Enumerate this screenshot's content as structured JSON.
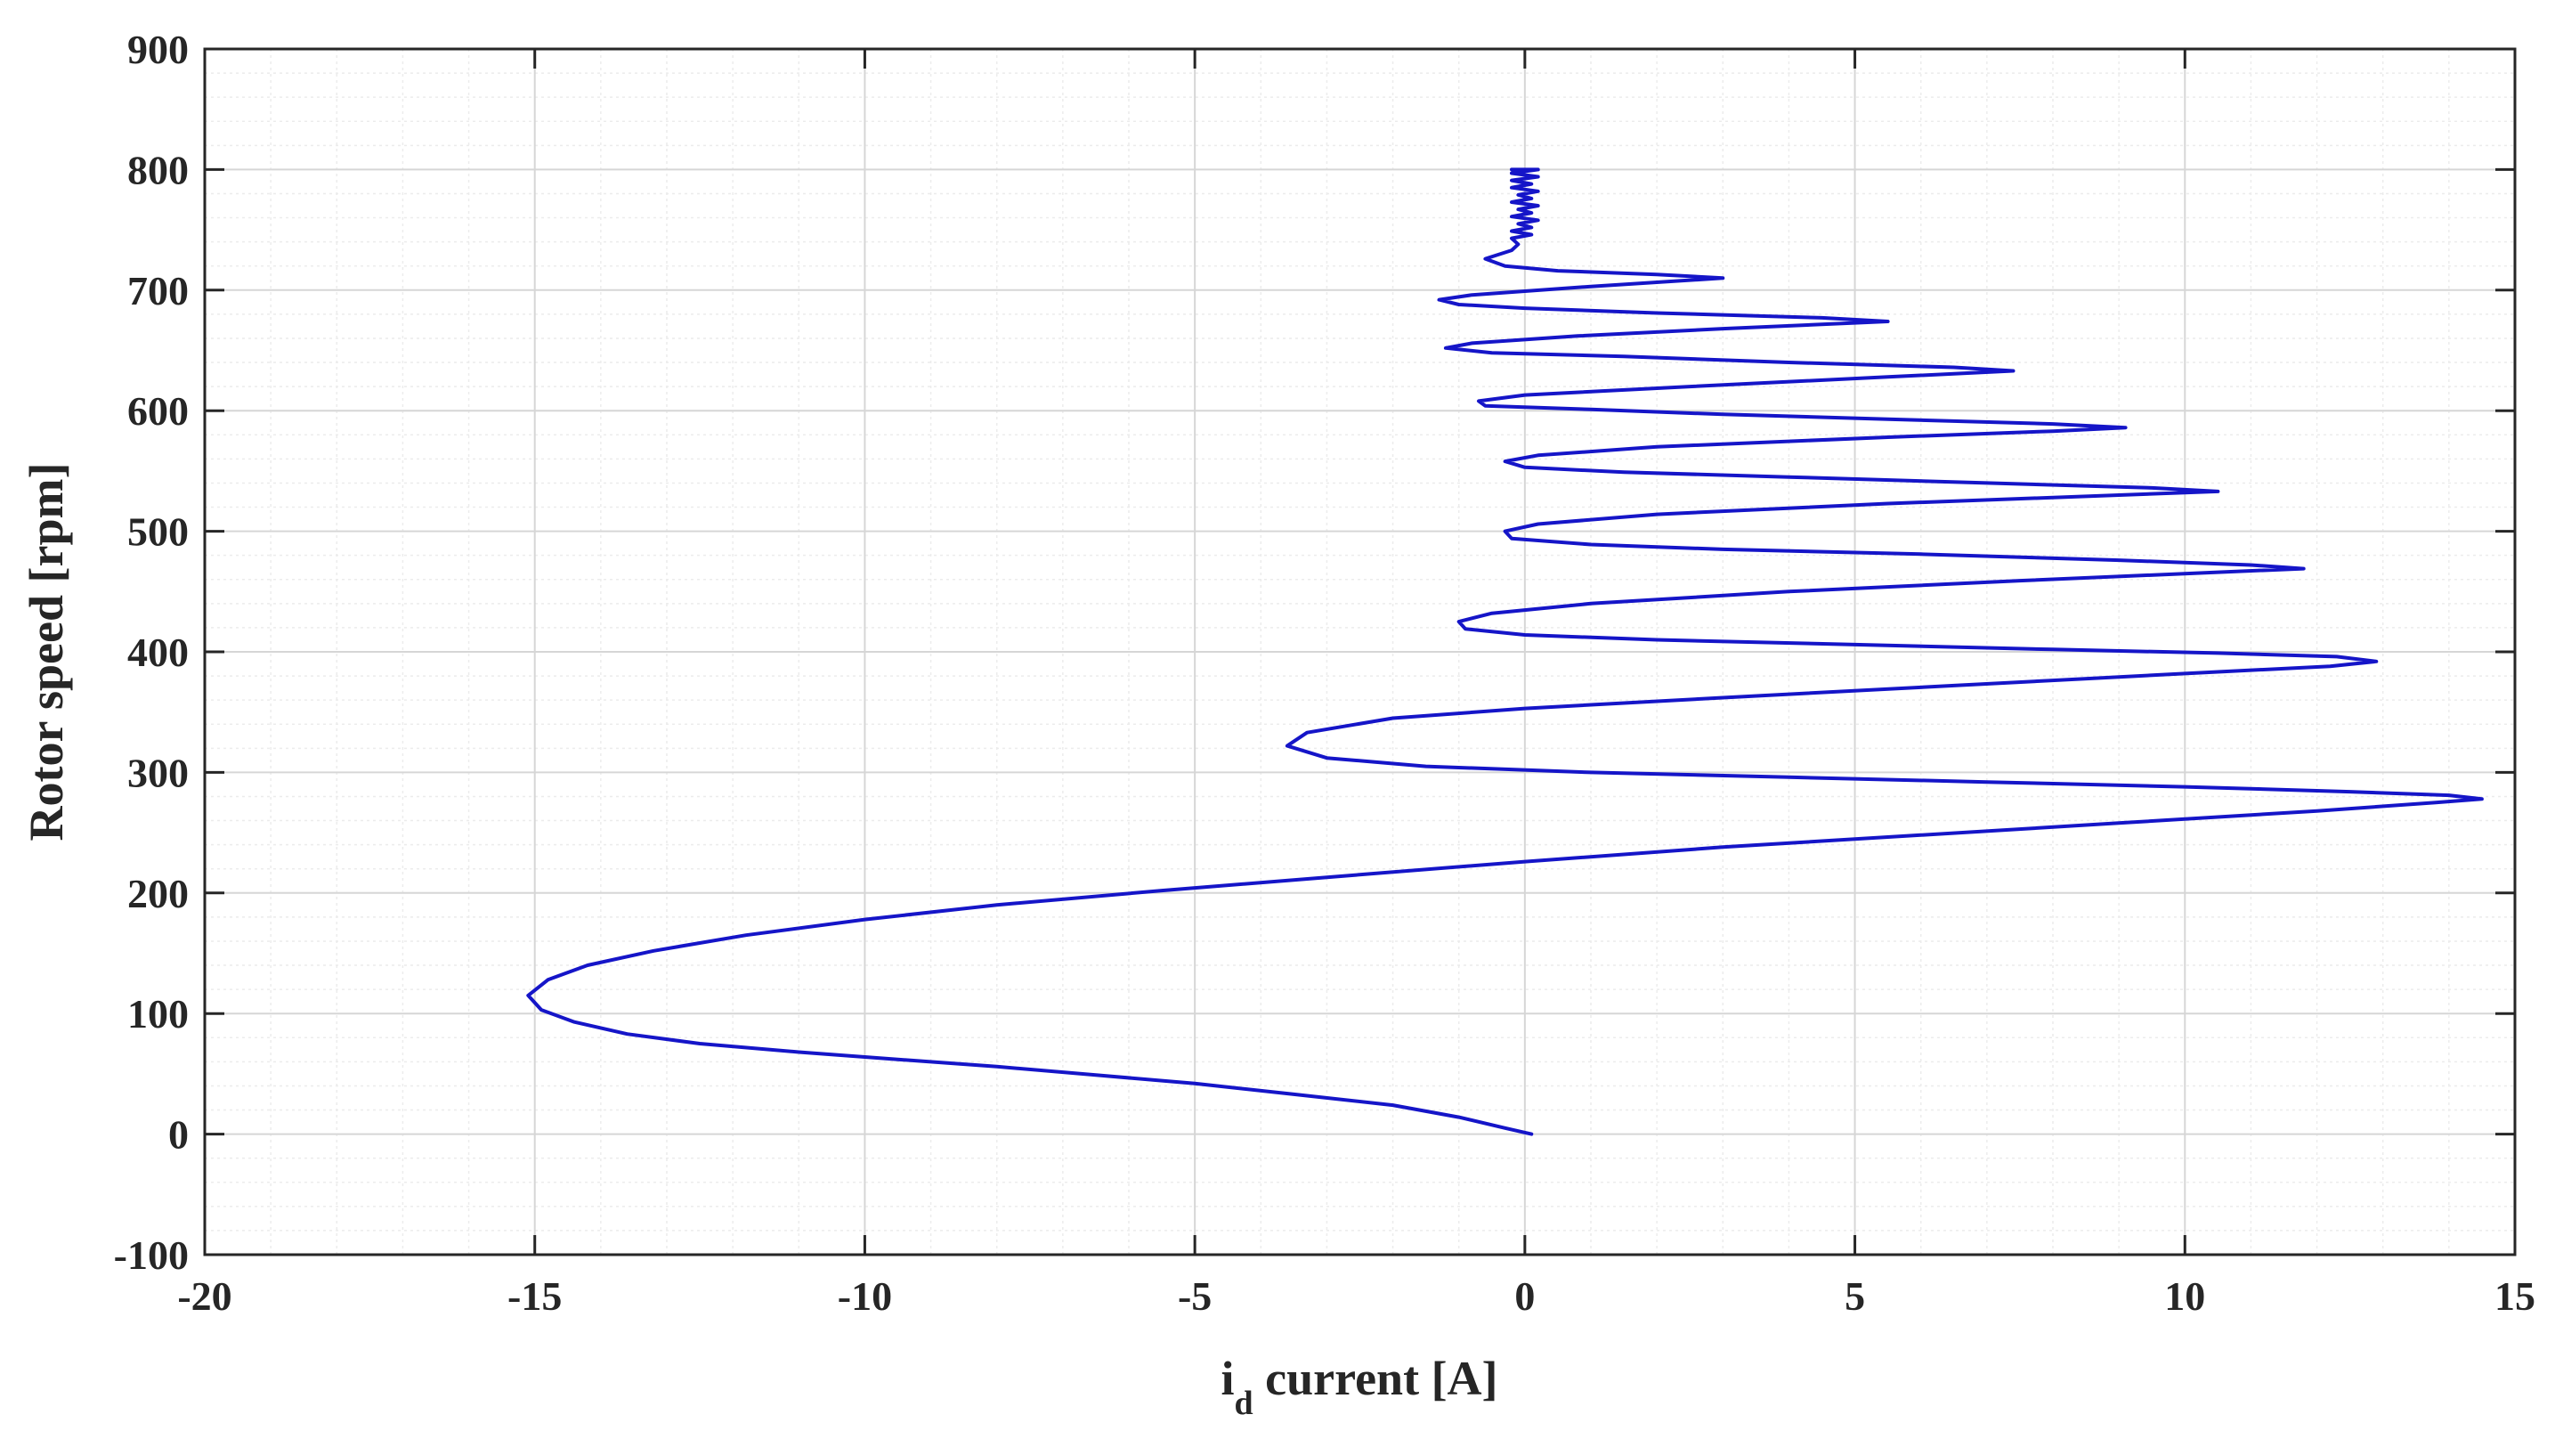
{
  "chart_data": {
    "type": "line",
    "title": "",
    "xlabel": {
      "main": "i",
      "subscript": "d",
      "rest": " current [A]"
    },
    "ylabel": "Rotor speed [rpm]",
    "xlim": [
      -20,
      15
    ],
    "ylim": [
      -100,
      900
    ],
    "xticks": [
      -20,
      -15,
      -10,
      -5,
      0,
      5,
      10,
      15
    ],
    "yticks": [
      -100,
      0,
      100,
      200,
      300,
      400,
      500,
      600,
      700,
      800,
      900
    ],
    "xtick_labels": [
      "-20",
      "-15",
      "-10",
      "-5",
      "0",
      "5",
      "10",
      "15"
    ],
    "ytick_labels": [
      "-100",
      "0",
      "100",
      "200",
      "300",
      "400",
      "500",
      "600",
      "700",
      "800",
      "900"
    ],
    "grid": true,
    "minor_grid": true,
    "legend": "none",
    "line_color": "#1515c8",
    "series": [
      {
        "points": [
          [
            0.1,
            0
          ],
          [
            -0.3,
            5
          ],
          [
            -1.0,
            14
          ],
          [
            -2.0,
            24
          ],
          [
            -3.5,
            33
          ],
          [
            -5.0,
            42
          ],
          [
            -6.5,
            49
          ],
          [
            -8.0,
            56
          ],
          [
            -9.5,
            62
          ],
          [
            -11.0,
            68
          ],
          [
            -12.5,
            75
          ],
          [
            -13.6,
            83
          ],
          [
            -14.4,
            93
          ],
          [
            -14.9,
            103
          ],
          [
            -15.1,
            115
          ],
          [
            -14.8,
            128
          ],
          [
            -14.2,
            140
          ],
          [
            -13.2,
            152
          ],
          [
            -11.8,
            165
          ],
          [
            -10.0,
            178
          ],
          [
            -8.0,
            190
          ],
          [
            -5.5,
            202
          ],
          [
            -3.0,
            213
          ],
          [
            0.0,
            226
          ],
          [
            3.0,
            238
          ],
          [
            6.0,
            248
          ],
          [
            9.0,
            258
          ],
          [
            12.0,
            268
          ],
          [
            13.8,
            275
          ],
          [
            14.5,
            278
          ],
          [
            14.0,
            281
          ],
          [
            12.5,
            284
          ],
          [
            10.0,
            288
          ],
          [
            7.0,
            292
          ],
          [
            4.0,
            296
          ],
          [
            1.0,
            300
          ],
          [
            -1.5,
            305
          ],
          [
            -3.0,
            312
          ],
          [
            -3.6,
            322
          ],
          [
            -3.3,
            333
          ],
          [
            -2.0,
            345
          ],
          [
            0.0,
            353
          ],
          [
            3.0,
            362
          ],
          [
            6.5,
            372
          ],
          [
            10.0,
            382
          ],
          [
            12.2,
            388
          ],
          [
            12.9,
            392
          ],
          [
            12.3,
            396
          ],
          [
            10.5,
            399
          ],
          [
            8.0,
            402
          ],
          [
            5.0,
            406
          ],
          [
            2.0,
            410
          ],
          [
            0.0,
            414
          ],
          [
            -0.9,
            419
          ],
          [
            -1.0,
            425
          ],
          [
            -0.5,
            432
          ],
          [
            1.0,
            440
          ],
          [
            4.0,
            450
          ],
          [
            7.5,
            459
          ],
          [
            10.5,
            466
          ],
          [
            11.8,
            469
          ],
          [
            11.0,
            472
          ],
          [
            9.0,
            476
          ],
          [
            6.0,
            481
          ],
          [
            3.0,
            485
          ],
          [
            1.0,
            489
          ],
          [
            -0.2,
            494
          ],
          [
            -0.3,
            500
          ],
          [
            0.2,
            506
          ],
          [
            2.0,
            514
          ],
          [
            5.5,
            523
          ],
          [
            9.0,
            530
          ],
          [
            10.5,
            533
          ],
          [
            9.5,
            536
          ],
          [
            7.0,
            540
          ],
          [
            4.0,
            545
          ],
          [
            1.5,
            549
          ],
          [
            0.0,
            553
          ],
          [
            -0.3,
            558
          ],
          [
            0.2,
            563
          ],
          [
            2.0,
            570
          ],
          [
            5.5,
            578
          ],
          [
            8.0,
            583
          ],
          [
            9.1,
            586
          ],
          [
            8.0,
            589
          ],
          [
            5.5,
            593
          ],
          [
            3.0,
            597
          ],
          [
            1.0,
            601
          ],
          [
            -0.6,
            604
          ],
          [
            -0.7,
            608
          ],
          [
            0.0,
            613
          ],
          [
            2.5,
            620
          ],
          [
            5.5,
            628
          ],
          [
            7.4,
            633
          ],
          [
            6.5,
            636
          ],
          [
            4.0,
            640
          ],
          [
            1.5,
            645
          ],
          [
            -0.5,
            648
          ],
          [
            -1.2,
            652
          ],
          [
            -0.8,
            656
          ],
          [
            0.8,
            662
          ],
          [
            3.0,
            668
          ],
          [
            5.5,
            674
          ],
          [
            4.5,
            677
          ],
          [
            2.0,
            681
          ],
          [
            0.0,
            685
          ],
          [
            -1.0,
            688
          ],
          [
            -1.3,
            692
          ],
          [
            -0.8,
            696
          ],
          [
            1.0,
            703
          ],
          [
            3.0,
            710
          ],
          [
            2.0,
            713
          ],
          [
            0.5,
            716
          ],
          [
            -0.3,
            720
          ],
          [
            -0.6,
            726
          ],
          [
            -0.2,
            733
          ],
          [
            -0.1,
            738
          ],
          [
            -0.2,
            743
          ],
          [
            0.1,
            746
          ],
          [
            -0.2,
            749
          ],
          [
            0.1,
            752
          ],
          [
            -0.1,
            755
          ],
          [
            0.2,
            758
          ],
          [
            -0.2,
            761
          ],
          [
            0.1,
            764
          ],
          [
            -0.1,
            767
          ],
          [
            0.2,
            770
          ],
          [
            -0.2,
            773
          ],
          [
            0.1,
            776
          ],
          [
            -0.1,
            779
          ],
          [
            0.2,
            782
          ],
          [
            -0.2,
            785
          ],
          [
            0.1,
            788
          ],
          [
            -0.2,
            791
          ],
          [
            0.2,
            794
          ],
          [
            -0.2,
            797
          ],
          [
            0.2,
            800
          ],
          [
            -0.2,
            800
          ]
        ]
      }
    ]
  }
}
